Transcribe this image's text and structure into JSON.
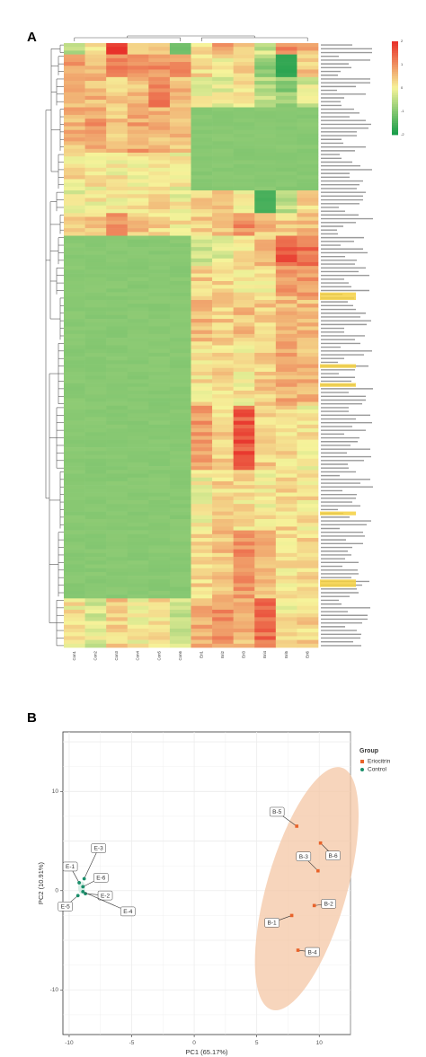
{
  "panels": {
    "a": "A",
    "b": "B"
  },
  "colors": {
    "heat_low": "#1b9e4b",
    "heat_mid": "#f6f39a",
    "heat_high": "#e8322b",
    "eriocitrin": "#e8632a",
    "control": "#1a8f6b",
    "ellipse": "#f4c7a6",
    "grid": "#ececec"
  },
  "chart_data": [
    {
      "type": "heatmap",
      "columns": [
        "Con1",
        "Con2",
        "Con3",
        "Con4",
        "Con5",
        "Con6",
        "Eri1",
        "Eri2",
        "Eri3",
        "Eri4",
        "Eri5",
        "Eri6"
      ],
      "legend_ticks": [
        "2",
        "1",
        "0",
        "-1",
        "-2"
      ],
      "scale_range": [
        -2,
        2
      ],
      "row_count": 160,
      "blocks": [
        {
          "rows": [
            0,
            2
          ],
          "values": [
            -0.5,
            0.3,
            2.1,
            0.5,
            0.4,
            -1.2,
            0.3,
            0.8,
            0.5,
            -0.4,
            1.0,
            0.6
          ]
        },
        {
          "rows": [
            3,
            8
          ],
          "values": [
            0.8,
            0.5,
            1.1,
            0.9,
            1.0,
            0.9,
            0.3,
            0.1,
            0.5,
            -0.8,
            -1.8,
            0.4
          ]
        },
        {
          "rows": [
            9,
            16
          ],
          "values": [
            0.7,
            0.6,
            0.3,
            0.5,
            1.3,
            0.6,
            0.0,
            -0.1,
            0.2,
            -0.6,
            -0.9,
            -0.2
          ]
        },
        {
          "rows": [
            17,
            28
          ],
          "values": [
            0.6,
            0.9,
            0.5,
            0.8,
            0.6,
            0.5,
            -1.0,
            -1.0,
            -1.0,
            -1.0,
            -1.0,
            -1.0
          ]
        },
        {
          "rows": [
            29,
            38
          ],
          "values": [
            0.2,
            0.1,
            0.1,
            0.0,
            0.2,
            0.0,
            -1.0,
            -1.0,
            -1.0,
            -1.0,
            -1.0,
            -1.0
          ]
        },
        {
          "rows": [
            39,
            44
          ],
          "values": [
            -0.2,
            0.1,
            0.0,
            0.2,
            0.3,
            0.0,
            0.4,
            0.6,
            0.2,
            -1.6,
            -0.6,
            0.3
          ]
        },
        {
          "rows": [
            45,
            50
          ],
          "values": [
            0.3,
            0.4,
            1.0,
            0.5,
            0.3,
            0.2,
            0.4,
            0.5,
            1.0,
            0.5,
            0.4,
            0.6
          ]
        },
        {
          "rows": [
            51,
            58
          ],
          "values": [
            -1.0,
            -1.0,
            -1.0,
            -1.0,
            -1.0,
            -1.0,
            -0.3,
            -0.2,
            0.1,
            0.5,
            1.6,
            1.3
          ]
        },
        {
          "rows": [
            59,
            66
          ],
          "values": [
            -1.0,
            -1.0,
            -1.0,
            -1.0,
            -1.0,
            -1.0,
            0.4,
            0.3,
            0.1,
            0.0,
            1.0,
            0.9
          ]
        },
        {
          "rows": [
            67,
            78
          ],
          "values": [
            -1.0,
            -1.0,
            -1.0,
            -1.0,
            -1.0,
            -1.0,
            0.6,
            0.4,
            0.5,
            0.4,
            0.5,
            0.6
          ]
        },
        {
          "rows": [
            79,
            95
          ],
          "values": [
            -1.0,
            -1.0,
            -1.0,
            -1.0,
            -1.0,
            -1.0,
            0.2,
            0.3,
            0.1,
            0.4,
            0.7,
            0.6
          ]
        },
        {
          "rows": [
            96,
            112
          ],
          "values": [
            -1.0,
            -1.0,
            -1.0,
            -1.0,
            -1.0,
            -1.0,
            0.9,
            0.3,
            1.6,
            0.4,
            0.2,
            0.1
          ]
        },
        {
          "rows": [
            113,
            128
          ],
          "values": [
            -1.0,
            -1.0,
            -1.0,
            -1.0,
            -1.0,
            -1.0,
            0.0,
            0.3,
            0.2,
            0.1,
            0.3,
            0.2
          ]
        },
        {
          "rows": [
            129,
            146
          ],
          "values": [
            -1.0,
            -1.0,
            -1.0,
            -1.0,
            -1.0,
            -1.0,
            0.3,
            0.5,
            1.0,
            0.6,
            0.2,
            0.3
          ]
        },
        {
          "rows": [
            147,
            159
          ],
          "values": [
            0.1,
            -0.2,
            0.4,
            0.0,
            0.2,
            -0.4,
            0.7,
            1.0,
            0.6,
            1.4,
            0.1,
            0.3
          ]
        }
      ]
    },
    {
      "type": "scatter",
      "xlabel": "PC1 (65.17%)",
      "ylabel": "PC2 (10.91%)",
      "xlim": [
        -10.5,
        12.5
      ],
      "ylim": [
        -14.5,
        16
      ],
      "xticks": [
        "-10",
        "-5",
        "0",
        "5",
        "10"
      ],
      "yticks": [
        "-10",
        "0",
        "10"
      ],
      "legend_title": "Group",
      "series": [
        {
          "name": "Eriocitrin",
          "points": [
            {
              "label": "B-1",
              "x": 7.8,
              "y": -2.5
            },
            {
              "label": "B-2",
              "x": 9.6,
              "y": -1.5
            },
            {
              "label": "B-3",
              "x": 9.9,
              "y": 2.0
            },
            {
              "label": "B-4",
              "x": 8.3,
              "y": -6.0
            },
            {
              "label": "B-5",
              "x": 8.2,
              "y": 6.5
            },
            {
              "label": "B-6",
              "x": 10.1,
              "y": 4.8
            }
          ]
        },
        {
          "name": "Control",
          "points": [
            {
              "label": "E-1",
              "x": -9.2,
              "y": 0.8
            },
            {
              "label": "E-2",
              "x": -8.7,
              "y": -0.3
            },
            {
              "label": "E-3",
              "x": -8.8,
              "y": 1.2
            },
            {
              "label": "E-4",
              "x": -8.9,
              "y": -0.1
            },
            {
              "label": "E-5",
              "x": -9.3,
              "y": -0.5
            },
            {
              "label": "E-6",
              "x": -8.9,
              "y": 0.4
            }
          ]
        }
      ]
    }
  ]
}
